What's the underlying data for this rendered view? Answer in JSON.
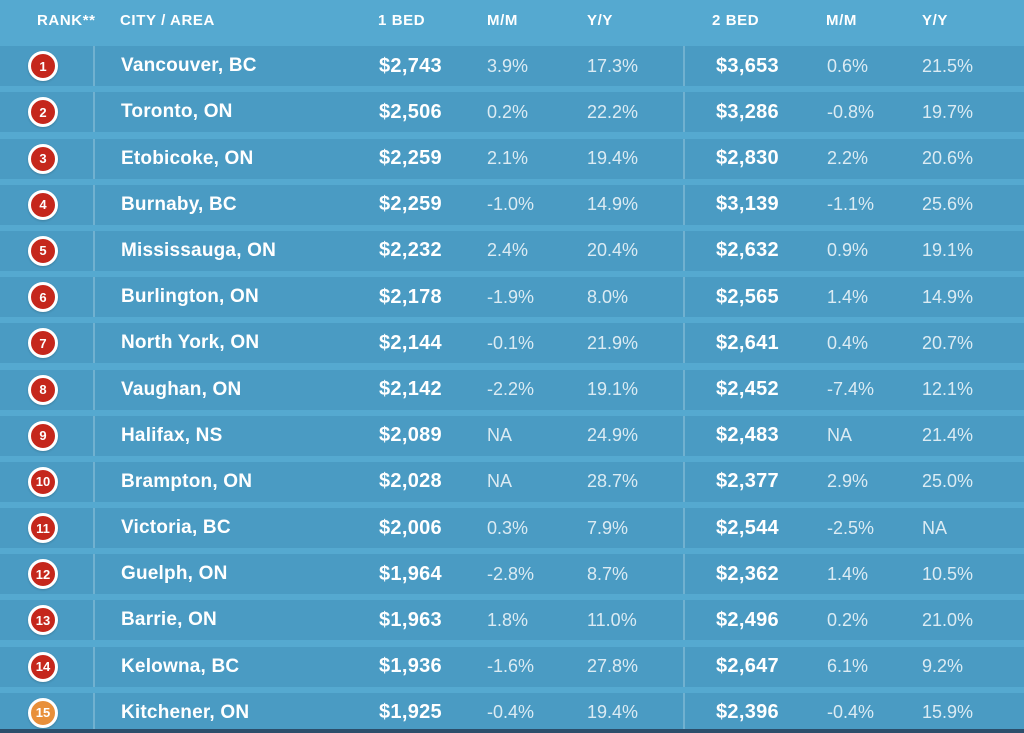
{
  "colors": {
    "background": "#55a9d0",
    "row_band": "#4a9bc3",
    "badge_red": "#c5271c",
    "badge_orange": "#e88f3a",
    "bottom_strip": "#2c4e6b",
    "header_text": "#ffffff"
  },
  "chart_data": {
    "type": "table",
    "columns": [
      "RANK**",
      "CITY / AREA",
      "1 BED",
      "M/M",
      "Y/Y",
      "2 BED",
      "M/M",
      "Y/Y"
    ],
    "rows": [
      {
        "rank": "1",
        "city": "Vancouver, BC",
        "one_bed": "$2,743",
        "one_bed_mm": "3.9%",
        "one_bed_yy": "17.3%",
        "two_bed": "$3,653",
        "two_bed_mm": "0.6%",
        "two_bed_yy": "21.5%",
        "badge": "red"
      },
      {
        "rank": "2",
        "city": "Toronto, ON",
        "one_bed": "$2,506",
        "one_bed_mm": "0.2%",
        "one_bed_yy": "22.2%",
        "two_bed": "$3,286",
        "two_bed_mm": "-0.8%",
        "two_bed_yy": "19.7%",
        "badge": "red"
      },
      {
        "rank": "3",
        "city": "Etobicoke, ON",
        "one_bed": "$2,259",
        "one_bed_mm": "2.1%",
        "one_bed_yy": "19.4%",
        "two_bed": "$2,830",
        "two_bed_mm": "2.2%",
        "two_bed_yy": "20.6%",
        "badge": "red"
      },
      {
        "rank": "4",
        "city": "Burnaby, BC",
        "one_bed": "$2,259",
        "one_bed_mm": "-1.0%",
        "one_bed_yy": "14.9%",
        "two_bed": "$3,139",
        "two_bed_mm": "-1.1%",
        "two_bed_yy": "25.6%",
        "badge": "red"
      },
      {
        "rank": "5",
        "city": "Mississauga, ON",
        "one_bed": "$2,232",
        "one_bed_mm": "2.4%",
        "one_bed_yy": "20.4%",
        "two_bed": "$2,632",
        "two_bed_mm": "0.9%",
        "two_bed_yy": "19.1%",
        "badge": "red"
      },
      {
        "rank": "6",
        "city": "Burlington, ON",
        "one_bed": "$2,178",
        "one_bed_mm": "-1.9%",
        "one_bed_yy": "8.0%",
        "two_bed": "$2,565",
        "two_bed_mm": "1.4%",
        "two_bed_yy": "14.9%",
        "badge": "red"
      },
      {
        "rank": "7",
        "city": "North York, ON",
        "one_bed": "$2,144",
        "one_bed_mm": "-0.1%",
        "one_bed_yy": "21.9%",
        "two_bed": "$2,641",
        "two_bed_mm": "0.4%",
        "two_bed_yy": "20.7%",
        "badge": "red"
      },
      {
        "rank": "8",
        "city": "Vaughan, ON",
        "one_bed": "$2,142",
        "one_bed_mm": "-2.2%",
        "one_bed_yy": "19.1%",
        "two_bed": "$2,452",
        "two_bed_mm": "-7.4%",
        "two_bed_yy": "12.1%",
        "badge": "red"
      },
      {
        "rank": "9",
        "city": "Halifax, NS",
        "one_bed": "$2,089",
        "one_bed_mm": "NA",
        "one_bed_yy": "24.9%",
        "two_bed": "$2,483",
        "two_bed_mm": "NA",
        "two_bed_yy": "21.4%",
        "badge": "red"
      },
      {
        "rank": "10",
        "city": "Brampton, ON",
        "one_bed": "$2,028",
        "one_bed_mm": "NA",
        "one_bed_yy": "28.7%",
        "two_bed": "$2,377",
        "two_bed_mm": "2.9%",
        "two_bed_yy": "25.0%",
        "badge": "red"
      },
      {
        "rank": "11",
        "city": "Victoria, BC",
        "one_bed": "$2,006",
        "one_bed_mm": "0.3%",
        "one_bed_yy": "7.9%",
        "two_bed": "$2,544",
        "two_bed_mm": "-2.5%",
        "two_bed_yy": "NA",
        "badge": "red"
      },
      {
        "rank": "12",
        "city": "Guelph, ON",
        "one_bed": "$1,964",
        "one_bed_mm": "-2.8%",
        "one_bed_yy": "8.7%",
        "two_bed": "$2,362",
        "two_bed_mm": "1.4%",
        "two_bed_yy": "10.5%",
        "badge": "red"
      },
      {
        "rank": "13",
        "city": "Barrie, ON",
        "one_bed": "$1,963",
        "one_bed_mm": "1.8%",
        "one_bed_yy": "11.0%",
        "two_bed": "$2,496",
        "two_bed_mm": "0.2%",
        "two_bed_yy": "21.0%",
        "badge": "red"
      },
      {
        "rank": "14",
        "city": "Kelowna, BC",
        "one_bed": "$1,936",
        "one_bed_mm": "-1.6%",
        "one_bed_yy": "27.8%",
        "two_bed": "$2,647",
        "two_bed_mm": "6.1%",
        "two_bed_yy": "9.2%",
        "badge": "red"
      },
      {
        "rank": "15",
        "city": "Kitchener, ON",
        "one_bed": "$1,925",
        "one_bed_mm": "-0.4%",
        "one_bed_yy": "19.4%",
        "two_bed": "$2,396",
        "two_bed_mm": "-0.4%",
        "two_bed_yy": "15.9%",
        "badge": "orange"
      }
    ]
  }
}
